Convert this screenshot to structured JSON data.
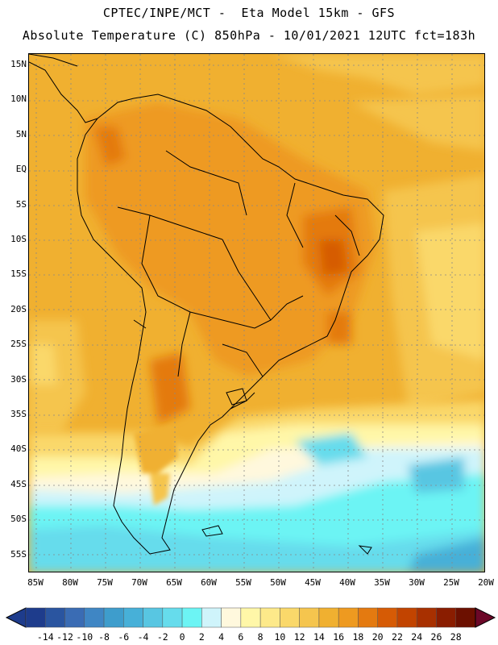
{
  "header": {
    "line1": "CPTEC/INPE/MCT -  Eta Model 15km - GFS",
    "line2": "Absolute Temperature (C) 850hPa - 10/01/2021 12UTC fct=183h"
  },
  "lat_labels": [
    "15N",
    "10N",
    "5N",
    "EQ",
    "5S",
    "10S",
    "15S",
    "20S",
    "25S",
    "30S",
    "35S",
    "40S",
    "45S",
    "50S",
    "55S"
  ],
  "lon_labels": [
    "85W",
    "80W",
    "75W",
    "70W",
    "65W",
    "60W",
    "55W",
    "50W",
    "45W",
    "40W",
    "35W",
    "30W",
    "25W",
    "20W"
  ],
  "colorbar": {
    "labels": [
      "-14",
      "-12",
      "-10",
      "-8",
      "-6",
      "-4",
      "-2",
      "0",
      "2",
      "4",
      "6",
      "8",
      "10",
      "12",
      "14",
      "16",
      "18",
      "20",
      "22",
      "24",
      "26",
      "28"
    ],
    "colors": [
      "#1e3c8c",
      "#2a55a0",
      "#3a6cb4",
      "#3f86c4",
      "#3e9dcc",
      "#47b0d8",
      "#58c6e2",
      "#66dcec",
      "#6cf4f4",
      "#cff4fb",
      "#fff8dd",
      "#fff7a8",
      "#fde98a",
      "#fad86a",
      "#f5c54e",
      "#f0b030",
      "#ee9a20",
      "#e47a10",
      "#d65b05",
      "#c24400",
      "#a83000",
      "#8a1d00",
      "#6c1000"
    ]
  }
}
